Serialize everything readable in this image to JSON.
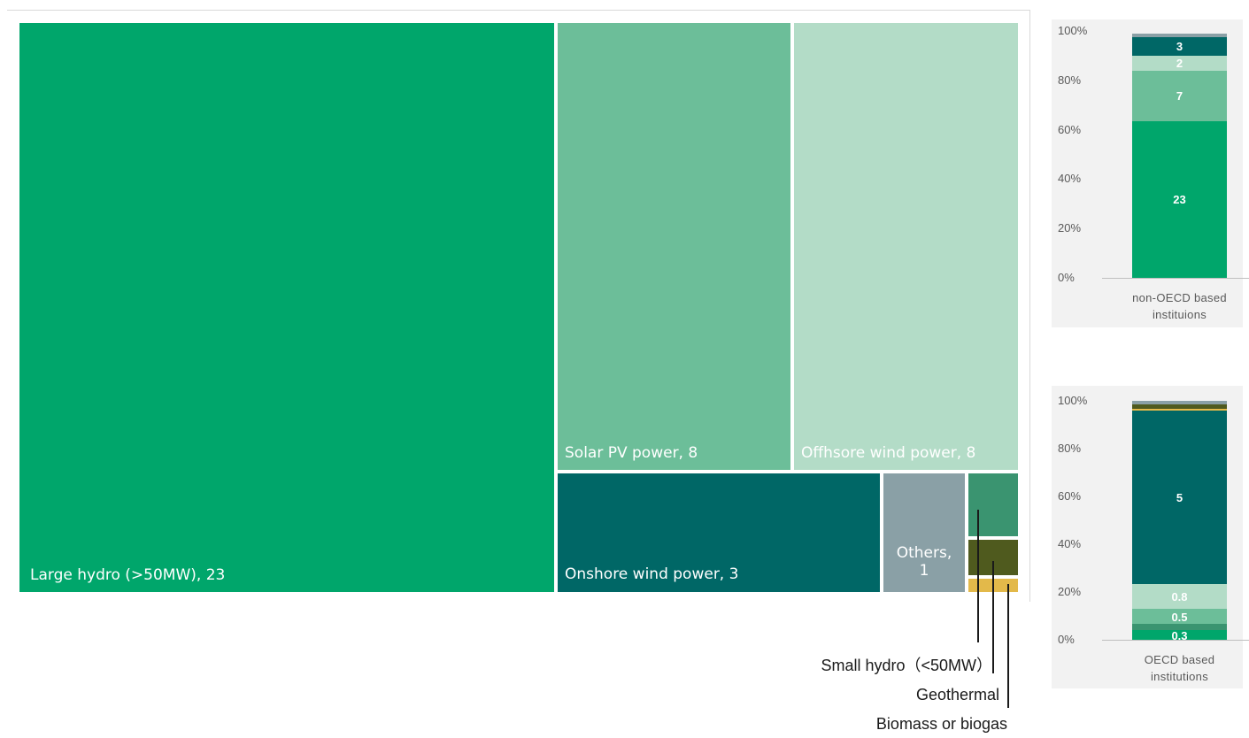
{
  "chart_data": [
    {
      "type": "treemap",
      "tiles": [
        {
          "name": "Large hydro (>50MW)",
          "value": 23,
          "label": "Large hydro (>50MW), 23",
          "color": "#00a66b"
        },
        {
          "name": "Solar PV power",
          "value": 8,
          "label": "Solar PV power, 8",
          "color": "#6cbe99"
        },
        {
          "name": "Offhsore wind power",
          "value": 8,
          "label": "Offhsore wind power, 8",
          "color": "#b3dcc7"
        },
        {
          "name": "Onshore wind power",
          "value": 3,
          "label": "Onshore wind power, 3",
          "color": "#006766"
        },
        {
          "name": "Others",
          "value": 1,
          "label": [
            "Others,",
            "1"
          ],
          "color": "#8aa0a6"
        },
        {
          "name": "Small hydro (<50MW)",
          "value": null,
          "label": "",
          "color": "#3a9470"
        },
        {
          "name": "Geothermal",
          "value": null,
          "label": "",
          "color": "#4f5a1e"
        },
        {
          "name": "Biomass or biogas",
          "value": null,
          "label": "",
          "color": "#e3b94a"
        }
      ],
      "callouts": [
        "Small hydro（<50MW）",
        "Geothermal",
        "Biomass or biogas"
      ]
    },
    {
      "type": "stacked_bar_100",
      "category": [
        "non-OECD based",
        "instituions"
      ],
      "yticks": [
        "100%",
        "80%",
        "60%",
        "40%",
        "20%",
        "0%"
      ],
      "ylim": [
        0,
        100
      ],
      "segments": [
        {
          "series": "Large hydro (>50MW)",
          "percent": 63.5,
          "label": "23",
          "color": "#00a66b"
        },
        {
          "series": "Solar PV power",
          "percent": 20.5,
          "label": "7",
          "color": "#6cbe99"
        },
        {
          "series": "Offhsore wind power",
          "percent": 6.0,
          "label": "2",
          "color": "#b3dcc7"
        },
        {
          "series": "Onshore wind power",
          "percent": 7.5,
          "label": "3",
          "color": "#006766"
        },
        {
          "series": "Others",
          "percent": 1.5,
          "label": "",
          "color": "#8aa0a6"
        }
      ]
    },
    {
      "type": "stacked_bar_100",
      "category": [
        "OECD based",
        "institutions"
      ],
      "yticks": [
        "100%",
        "80%",
        "60%",
        "40%",
        "20%",
        "0%"
      ],
      "ylim": [
        0,
        100
      ],
      "segments": [
        {
          "series": "Large hydro (>50MW)",
          "percent": 4.0,
          "label": "0.3",
          "color": "#00a66b"
        },
        {
          "series": "Small hydro (<50MW)",
          "percent": 2.5,
          "label": "",
          "color": "#3a9470"
        },
        {
          "series": "Solar PV power",
          "percent": 6.5,
          "label": "0.5",
          "color": "#6cbe99"
        },
        {
          "series": "Offhsore wind power",
          "percent": 10.5,
          "label": "0.8",
          "color": "#b3dcc7"
        },
        {
          "series": "Onshore wind power",
          "percent": 72.5,
          "label": "5",
          "color": "#006766"
        },
        {
          "series": "Biomass or biogas",
          "percent": 0.5,
          "label": "",
          "color": "#e3b94a"
        },
        {
          "series": "Geothermal",
          "percent": 2.0,
          "label": "",
          "color": "#4f5a1e"
        },
        {
          "series": "Others",
          "percent": 1.5,
          "label": "",
          "color": "#8aa0a6"
        }
      ]
    }
  ]
}
